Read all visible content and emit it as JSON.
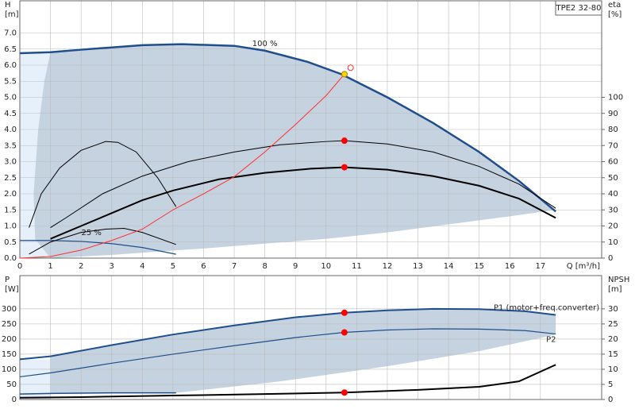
{
  "chart_data": [
    {
      "type": "line",
      "box_label": "TPE2 32-80",
      "x_title": "Q [m³/h]",
      "y_title": "H",
      "y_unit": "[m]",
      "y2_title": "eta",
      "y2_unit": "[%]",
      "xlim": [
        0,
        19
      ],
      "ylim": [
        0,
        8
      ],
      "y2lim": [
        0,
        160
      ],
      "grid": true,
      "xtick_labels": true,
      "xticks": [
        0,
        1,
        2,
        3,
        4,
        5,
        6,
        7,
        8,
        9,
        10,
        11,
        12,
        13,
        14,
        15,
        16,
        17
      ],
      "yticks": [
        {
          "value": 0,
          "label": "0.0"
        },
        0.5,
        {
          "value": 1,
          "label": "1.0"
        },
        1.5,
        {
          "value": 2,
          "label": "2.0"
        },
        2.5,
        {
          "value": 3,
          "label": "3.0"
        },
        3.5,
        {
          "value": 4,
          "label": "4.0"
        },
        4.5,
        {
          "value": 5,
          "label": "5.0"
        },
        5.5,
        {
          "value": 6,
          "label": "6.0"
        },
        6.5,
        {
          "value": 7,
          "label": "7.0"
        }
      ],
      "y2ticks": [
        0,
        10,
        20,
        30,
        40,
        50,
        60,
        70,
        80,
        90,
        100
      ],
      "region": {
        "color": "#c5d2e0",
        "x": [
          17.5,
          16,
          14,
          12,
          10,
          8,
          6,
          5.2,
          3,
          2,
          1,
          0.5,
          0.45,
          0.6,
          0.8,
          1
        ],
        "values": [
          1.5,
          1.3,
          1.05,
          0.8,
          0.6,
          0.45,
          0.3,
          0.25,
          0.1,
          0.05,
          0,
          0.6,
          2.0,
          4.0,
          5.5,
          6.4
        ]
      },
      "series": [
        {
          "name": "100 %",
          "color": "#1f4e8c",
          "width": 2.5,
          "x": [
            0,
            1,
            2,
            3,
            4,
            5.3,
            7,
            8,
            9.4,
            10.5,
            12,
            13.5,
            15,
            16.3,
            17.5
          ],
          "values": [
            6.37,
            6.4,
            6.48,
            6.55,
            6.62,
            6.65,
            6.6,
            6.45,
            6.1,
            5.72,
            5.0,
            4.2,
            3.3,
            2.4,
            1.45
          ]
        },
        {
          "name": "25 %",
          "color": "#1f4e8c",
          "width": 1.2,
          "x": [
            0,
            1,
            2,
            3,
            4,
            5.1
          ],
          "values": [
            0.55,
            0.55,
            0.52,
            0.45,
            0.33,
            0.12
          ]
        },
        {
          "color": "#000000",
          "width": 2,
          "axis": "y2",
          "x": [
            1,
            2,
            3,
            4,
            5,
            6.5,
            8,
            9.5,
            10.6,
            12,
            13.5,
            15,
            16.3,
            17.5
          ],
          "values": [
            12,
            20,
            28,
            36,
            42,
            49,
            53,
            55.6,
            56.5,
            55,
            51,
            45,
            37,
            25
          ]
        },
        {
          "color": "#000000",
          "width": 1,
          "axis": "y2",
          "x": [
            1,
            1.5,
            2.7,
            4,
            5.5,
            7,
            8.5,
            10,
            10.6,
            12,
            13.5,
            15,
            16.3,
            17.5
          ],
          "values": [
            19,
            25,
            40,
            51,
            60,
            66,
            70.5,
            72.5,
            73,
            71,
            66,
            57,
            46,
            31
          ]
        },
        {
          "color": "#000000",
          "width": 1,
          "axis": "y2",
          "x": [
            0.3,
            0.7,
            1.3,
            2,
            2.8,
            3.2,
            3.8,
            4.5,
            5.1
          ],
          "values": [
            19,
            40,
            56,
            67,
            72.5,
            72,
            66,
            50,
            32
          ]
        },
        {
          "color": "#000000",
          "width": 1,
          "axis": "y2",
          "x": [
            0.3,
            1,
            2,
            2.8,
            3.4,
            4,
            5.1
          ],
          "values": [
            2.5,
            10,
            16,
            18,
            18.5,
            16,
            8.5
          ]
        },
        {
          "color": "#ff3030",
          "width": 1,
          "x": [
            0,
            1,
            2,
            3,
            4,
            5,
            6,
            7,
            8,
            9,
            10,
            10.6
          ],
          "values": [
            0,
            0.05,
            0.25,
            0.55,
            0.9,
            1.5,
            2.0,
            2.53,
            3.3,
            4.15,
            5.05,
            5.72
          ]
        }
      ],
      "markers": [
        {
          "x": 10.6,
          "y": 5.72,
          "fill": "#ffd700",
          "stroke": "#b08000"
        },
        {
          "x": 10.8,
          "y": 5.92,
          "fill": "#ffffff",
          "stroke": "#ff3030"
        },
        {
          "x": 10.6,
          "y": 73,
          "axis": "y2",
          "fill": "#ff0000",
          "stroke": "#ff0000"
        },
        {
          "x": 10.6,
          "y": 56.5,
          "axis": "y2",
          "fill": "#ff0000",
          "stroke": "#ff0000"
        }
      ]
    },
    {
      "type": "line",
      "y_title": "P",
      "y_unit": "[W]",
      "y2_title": "NPSH",
      "y2_unit": "[m]",
      "xlim": [
        0,
        19
      ],
      "ylim": [
        0,
        410
      ],
      "y2lim": [
        0,
        41
      ],
      "grid": true,
      "xtick_labels": false,
      "xticks": [
        0,
        1,
        2,
        3,
        4,
        5,
        6,
        7,
        8,
        9,
        10,
        11,
        12,
        13,
        14,
        15,
        16,
        17
      ],
      "yticks": [
        0,
        50,
        100,
        150,
        200,
        250,
        300
      ],
      "y2ticks": [
        0,
        5,
        10,
        15,
        20,
        25,
        30
      ],
      "region": {
        "color": "#c5d2e0",
        "x": [
          17.5,
          15,
          12,
          8.5,
          5.1,
          1
        ],
        "values": [
          215,
          160,
          110,
          60,
          22,
          20
        ]
      },
      "series": [
        {
          "name": "P1 (motor+freq.converter)",
          "color": "#1f4e8c",
          "width": 2,
          "x": [
            0,
            1,
            3,
            5,
            7,
            9,
            10.6,
            12,
            13.5,
            15,
            16.5,
            17.5
          ],
          "values": [
            133,
            143,
            180,
            215,
            245,
            272,
            287,
            295,
            300,
            299,
            292,
            280
          ]
        },
        {
          "name": "P2",
          "color": "#1f4e8c",
          "width": 1.2,
          "x": [
            0,
            1,
            3,
            5,
            7,
            9,
            10.6,
            12,
            13.5,
            15,
            16.5,
            17.5
          ],
          "values": [
            75,
            88,
            120,
            150,
            178,
            205,
            222,
            230,
            234,
            233,
            228,
            217
          ]
        },
        {
          "color": "#1f4e8c",
          "width": 1.5,
          "x": [
            0,
            1,
            3,
            5.1
          ],
          "values": [
            18,
            20,
            22,
            22
          ]
        },
        {
          "color": "#000000",
          "width": 2,
          "axis": "y2",
          "x": [
            0,
            2,
            5,
            8,
            10.6,
            13,
            15,
            16.3,
            17.5
          ],
          "values": [
            0.6,
            0.8,
            1.3,
            1.8,
            2.3,
            3.2,
            4.2,
            6,
            11.5
          ]
        }
      ],
      "markers": [
        {
          "x": 10.6,
          "y": 287,
          "fill": "#ff0000",
          "stroke": "#ff0000"
        },
        {
          "x": 10.6,
          "y": 222,
          "fill": "#ff0000",
          "stroke": "#ff0000"
        },
        {
          "x": 10.6,
          "y": 2.3,
          "axis": "y2",
          "fill": "#ff0000",
          "stroke": "#ff0000"
        }
      ]
    }
  ]
}
